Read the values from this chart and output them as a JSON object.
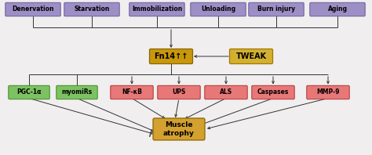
{
  "top_boxes": [
    "Denervation",
    "Starvation",
    "Immobilization",
    "Unloading",
    "Burn injury",
    "Aging"
  ],
  "top_box_color": "#9d8ec5",
  "top_box_edge": "#6b5a9a",
  "fn14_label": "Fn14↑↑",
  "fn14_color": "#c8970a",
  "fn14_edge": "#8a6500",
  "tweak_label": "TWEAK",
  "tweak_color": "#d4b030",
  "tweak_edge": "#a07800",
  "green_boxes": [
    "PGC-1α",
    "myomiRs"
  ],
  "green_box_color": "#7dc262",
  "green_box_edge": "#3a8a20",
  "red_boxes": [
    "NF-κB",
    "UPS",
    "ALS",
    "Caspases",
    "MMP-9"
  ],
  "red_box_color": "#e87878",
  "red_box_edge": "#b03030",
  "muscle_label": "Muscle\natrophy",
  "muscle_color": "#d4a030",
  "muscle_edge": "#8a6500",
  "bg_color": "#f0eeee",
  "arrow_color": "#333333",
  "line_color": "#333333"
}
